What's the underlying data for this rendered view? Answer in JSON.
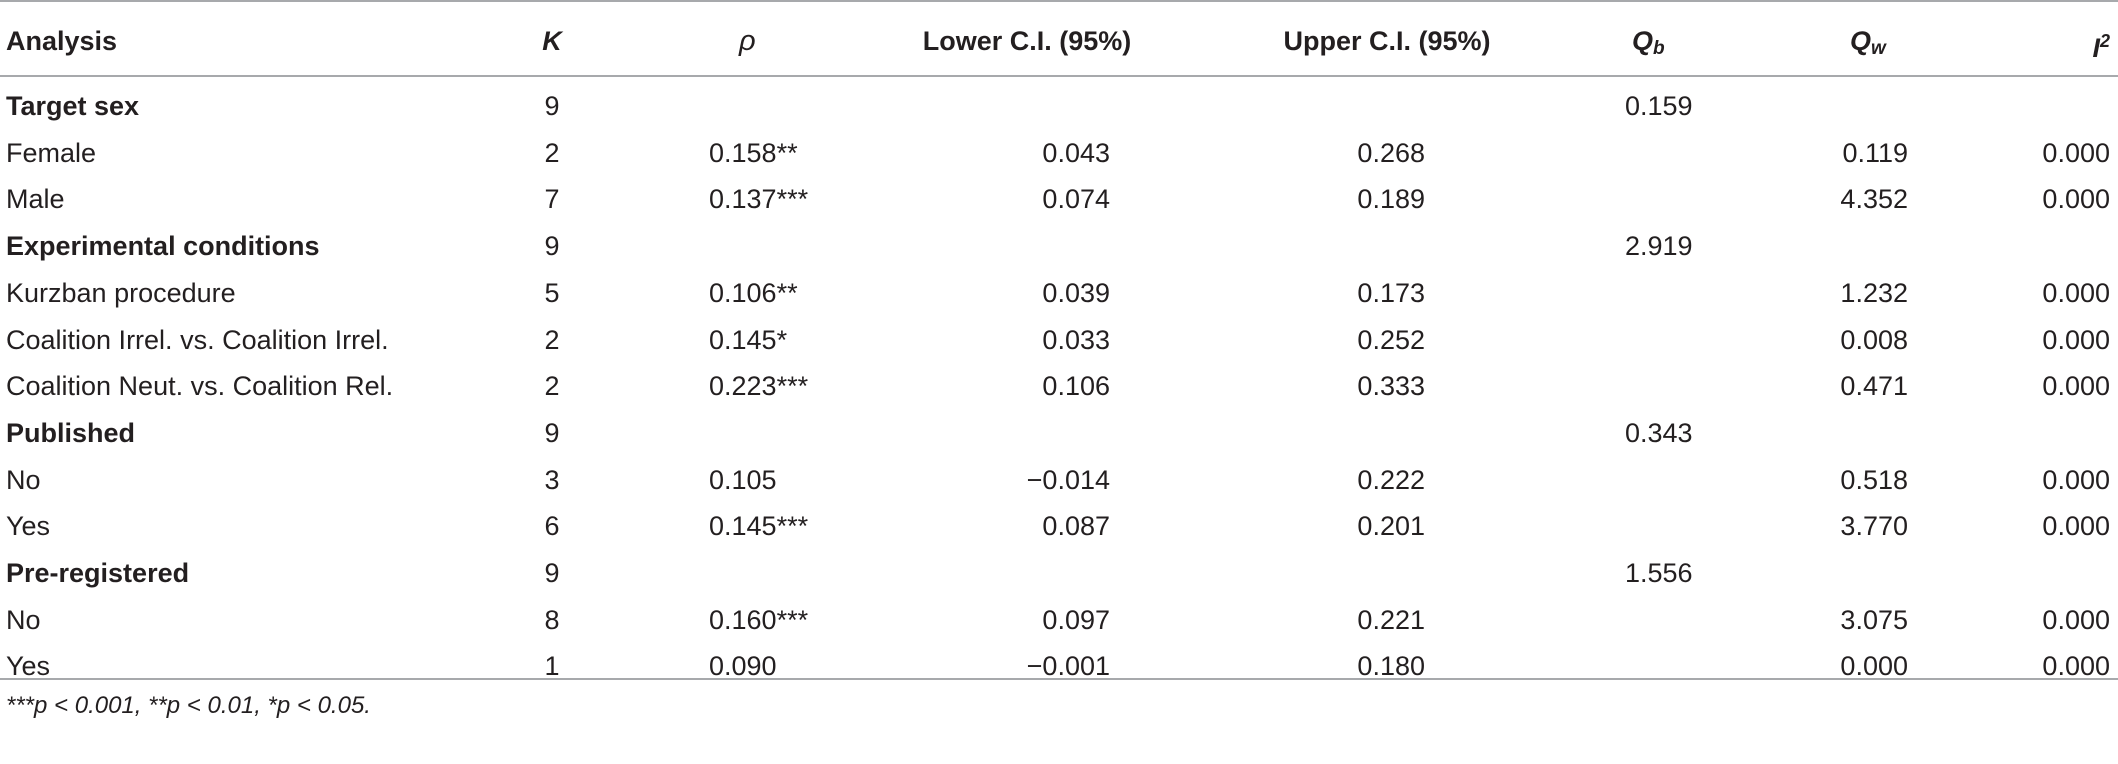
{
  "header": {
    "analysis": "Analysis",
    "k": "K",
    "rho": "ρ",
    "lower": "Lower C.I. (95%)",
    "upper": "Upper C.I. (95%)",
    "qb_main": "Q",
    "qb_sub": "b",
    "qw_main": "Q",
    "qw_sub": "w",
    "i2_main": "I",
    "i2_sup": "2"
  },
  "rows": [
    {
      "analysis": "Target sex",
      "k": "9",
      "rho": "",
      "lower": "",
      "upper": "",
      "qb": "0.159",
      "qw": "",
      "i2": ""
    },
    {
      "analysis": "Female",
      "k": "2",
      "rho": "0.158**",
      "lower": "0.043",
      "upper": "0.268",
      "qb": "",
      "qw": "0.119",
      "i2": "0.000"
    },
    {
      "analysis": "Male",
      "k": "7",
      "rho": "0.137***",
      "lower": "0.074",
      "upper": "0.189",
      "qb": "",
      "qw": "4.352",
      "i2": "0.000"
    },
    {
      "analysis": "Experimental conditions",
      "k": "9",
      "rho": "",
      "lower": "",
      "upper": "",
      "qb": "2.919",
      "qw": "",
      "i2": ""
    },
    {
      "analysis": "Kurzban procedure",
      "k": "5",
      "rho": "0.106**",
      "lower": "0.039",
      "upper": "0.173",
      "qb": "",
      "qw": "1.232",
      "i2": "0.000"
    },
    {
      "analysis": "Coalition Irrel. vs. Coalition Irrel.",
      "k": "2",
      "rho": "0.145*",
      "lower": "0.033",
      "upper": "0.252",
      "qb": "",
      "qw": "0.008",
      "i2": "0.000"
    },
    {
      "analysis": "Coalition Neut. vs. Coalition Rel.",
      "k": "2",
      "rho": "0.223***",
      "lower": "0.106",
      "upper": "0.333",
      "qb": "",
      "qw": "0.471",
      "i2": "0.000"
    },
    {
      "analysis": "Published",
      "k": "9",
      "rho": "",
      "lower": "",
      "upper": "",
      "qb": "0.343",
      "qw": "",
      "i2": ""
    },
    {
      "analysis": "No",
      "k": "3",
      "rho": "0.105",
      "lower": "−0.014",
      "upper": "0.222",
      "qb": "",
      "qw": "0.518",
      "i2": "0.000"
    },
    {
      "analysis": "Yes",
      "k": "6",
      "rho": "0.145***",
      "lower": "0.087",
      "upper": "0.201",
      "qb": "",
      "qw": "3.770",
      "i2": "0.000"
    },
    {
      "analysis": "Pre-registered",
      "k": "9",
      "rho": "",
      "lower": "",
      "upper": "",
      "qb": "1.556",
      "qw": "",
      "i2": ""
    },
    {
      "analysis": "No",
      "k": "8",
      "rho": "0.160***",
      "lower": "0.097",
      "upper": "0.221",
      "qb": "",
      "qw": "3.075",
      "i2": "0.000"
    },
    {
      "analysis": "Yes",
      "k": "1",
      "rho": "0.090",
      "lower": "−0.001",
      "upper": "0.180",
      "qb": "",
      "qw": "0.000",
      "i2": "0.000"
    }
  ],
  "footnote": "***p < 0.001, **p < 0.01, *p < 0.05."
}
